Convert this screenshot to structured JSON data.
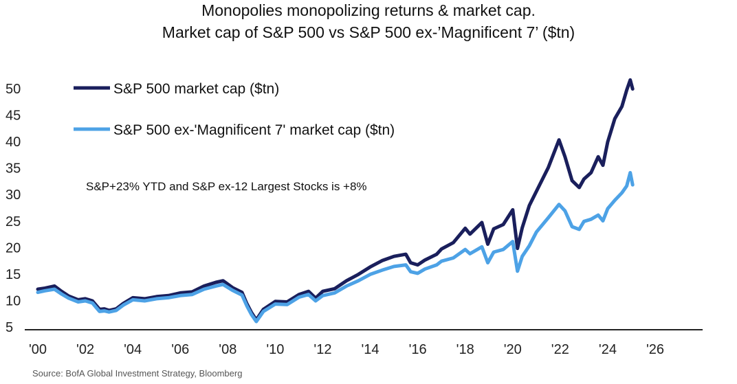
{
  "chart_data": {
    "type": "line",
    "title": "Monopolies monopolizing returns & market cap.",
    "subtitle": "Market cap of S&P 500 vs S&P 500 ex-’Magnificent 7’ ($tn)",
    "xlabel": "",
    "ylabel": "",
    "xlim": [
      2000,
      2026.7
    ],
    "ylim": [
      5,
      52
    ],
    "x_ticks": [
      "'00",
      "'02",
      "'04",
      "'06",
      "'08",
      "'10",
      "'12",
      "'14",
      "'16",
      "'18",
      "'20",
      "'22",
      "'24",
      "'26"
    ],
    "y_ticks": [
      5,
      10,
      15,
      20,
      25,
      30,
      35,
      40,
      45,
      50
    ],
    "grid": false,
    "legend_position": "top-left",
    "annotation": "S&P+23% YTD and S&P ex-12 Largest Stocks is +8%",
    "series": [
      {
        "name": "S&P 500 market cap ($tn)",
        "color": "#1a1f5c",
        "points": [
          [
            2000.0,
            12.0
          ],
          [
            2000.3,
            12.2
          ],
          [
            2000.7,
            12.6
          ],
          [
            2001.0,
            11.6
          ],
          [
            2001.3,
            10.7
          ],
          [
            2001.7,
            10.0
          ],
          [
            2002.0,
            10.2
          ],
          [
            2002.3,
            9.8
          ],
          [
            2002.6,
            8.2
          ],
          [
            2002.8,
            8.3
          ],
          [
            2003.0,
            8.0
          ],
          [
            2003.3,
            8.3
          ],
          [
            2003.6,
            9.3
          ],
          [
            2004.0,
            10.4
          ],
          [
            2004.5,
            10.2
          ],
          [
            2005.0,
            10.6
          ],
          [
            2005.5,
            10.8
          ],
          [
            2006.0,
            11.3
          ],
          [
            2006.5,
            11.5
          ],
          [
            2007.0,
            12.6
          ],
          [
            2007.5,
            13.3
          ],
          [
            2007.8,
            13.6
          ],
          [
            2008.2,
            12.3
          ],
          [
            2008.6,
            11.4
          ],
          [
            2008.8,
            9.3
          ],
          [
            2009.0,
            7.6
          ],
          [
            2009.2,
            6.2
          ],
          [
            2009.5,
            8.2
          ],
          [
            2010.0,
            9.7
          ],
          [
            2010.5,
            9.6
          ],
          [
            2011.0,
            11.0
          ],
          [
            2011.4,
            11.6
          ],
          [
            2011.7,
            10.3
          ],
          [
            2012.0,
            11.6
          ],
          [
            2012.5,
            12.1
          ],
          [
            2013.0,
            13.6
          ],
          [
            2013.5,
            14.8
          ],
          [
            2014.0,
            16.2
          ],
          [
            2014.5,
            17.4
          ],
          [
            2015.0,
            18.2
          ],
          [
            2015.5,
            18.6
          ],
          [
            2015.7,
            17.0
          ],
          [
            2016.0,
            16.6
          ],
          [
            2016.3,
            17.5
          ],
          [
            2016.8,
            18.6
          ],
          [
            2017.0,
            19.6
          ],
          [
            2017.5,
            20.8
          ],
          [
            2018.0,
            23.5
          ],
          [
            2018.2,
            22.4
          ],
          [
            2018.7,
            24.6
          ],
          [
            2018.95,
            20.5
          ],
          [
            2019.2,
            23.4
          ],
          [
            2019.6,
            24.2
          ],
          [
            2020.0,
            27.0
          ],
          [
            2020.2,
            19.7
          ],
          [
            2020.4,
            23.6
          ],
          [
            2020.7,
            27.8
          ],
          [
            2021.0,
            30.5
          ],
          [
            2021.5,
            35.0
          ],
          [
            2021.95,
            40.2
          ],
          [
            2022.2,
            37.0
          ],
          [
            2022.5,
            32.5
          ],
          [
            2022.8,
            31.2
          ],
          [
            2023.0,
            32.8
          ],
          [
            2023.3,
            34.0
          ],
          [
            2023.6,
            37.0
          ],
          [
            2023.8,
            35.4
          ],
          [
            2024.0,
            39.8
          ],
          [
            2024.3,
            44.2
          ],
          [
            2024.6,
            46.5
          ],
          [
            2024.8,
            49.6
          ],
          [
            2024.95,
            51.5
          ],
          [
            2025.05,
            49.8
          ]
        ]
      },
      {
        "name": "S&P 500 ex-'Magnificent 7' market cap ($tn)",
        "color": "#4da2e6",
        "points": [
          [
            2000.0,
            11.4
          ],
          [
            2000.3,
            11.7
          ],
          [
            2000.7,
            12.0
          ],
          [
            2001.0,
            11.1
          ],
          [
            2001.3,
            10.3
          ],
          [
            2001.7,
            9.6
          ],
          [
            2002.0,
            9.8
          ],
          [
            2002.3,
            9.4
          ],
          [
            2002.6,
            7.8
          ],
          [
            2002.8,
            7.9
          ],
          [
            2003.0,
            7.7
          ],
          [
            2003.3,
            8.0
          ],
          [
            2003.6,
            9.0
          ],
          [
            2004.0,
            10.0
          ],
          [
            2004.5,
            9.8
          ],
          [
            2005.0,
            10.2
          ],
          [
            2005.5,
            10.4
          ],
          [
            2006.0,
            10.8
          ],
          [
            2006.5,
            11.0
          ],
          [
            2007.0,
            12.0
          ],
          [
            2007.5,
            12.6
          ],
          [
            2007.8,
            12.9
          ],
          [
            2008.2,
            11.8
          ],
          [
            2008.6,
            10.9
          ],
          [
            2008.8,
            8.9
          ],
          [
            2009.0,
            7.2
          ],
          [
            2009.2,
            5.9
          ],
          [
            2009.5,
            7.8
          ],
          [
            2010.0,
            9.2
          ],
          [
            2010.5,
            9.1
          ],
          [
            2011.0,
            10.5
          ],
          [
            2011.4,
            11.0
          ],
          [
            2011.7,
            9.8
          ],
          [
            2012.0,
            10.8
          ],
          [
            2012.5,
            11.3
          ],
          [
            2013.0,
            12.6
          ],
          [
            2013.5,
            13.6
          ],
          [
            2014.0,
            14.8
          ],
          [
            2014.5,
            15.6
          ],
          [
            2015.0,
            16.3
          ],
          [
            2015.5,
            16.6
          ],
          [
            2015.7,
            15.3
          ],
          [
            2016.0,
            15.0
          ],
          [
            2016.3,
            15.8
          ],
          [
            2016.8,
            16.6
          ],
          [
            2017.0,
            17.3
          ],
          [
            2017.5,
            17.9
          ],
          [
            2018.0,
            19.5
          ],
          [
            2018.2,
            18.7
          ],
          [
            2018.7,
            20.0
          ],
          [
            2018.95,
            17.0
          ],
          [
            2019.2,
            19.0
          ],
          [
            2019.6,
            19.5
          ],
          [
            2020.0,
            21.0
          ],
          [
            2020.2,
            15.4
          ],
          [
            2020.4,
            18.2
          ],
          [
            2020.7,
            20.2
          ],
          [
            2021.0,
            22.8
          ],
          [
            2021.5,
            25.5
          ],
          [
            2021.95,
            28.0
          ],
          [
            2022.2,
            26.8
          ],
          [
            2022.5,
            23.8
          ],
          [
            2022.8,
            23.3
          ],
          [
            2023.0,
            24.8
          ],
          [
            2023.3,
            25.2
          ],
          [
            2023.6,
            26.0
          ],
          [
            2023.8,
            24.9
          ],
          [
            2024.0,
            27.2
          ],
          [
            2024.3,
            28.8
          ],
          [
            2024.6,
            30.2
          ],
          [
            2024.8,
            31.5
          ],
          [
            2024.95,
            34.0
          ],
          [
            2025.05,
            31.7
          ]
        ]
      }
    ]
  },
  "footer": {
    "source": "Source: BofA Global Investment Strategy, Bloomberg"
  }
}
